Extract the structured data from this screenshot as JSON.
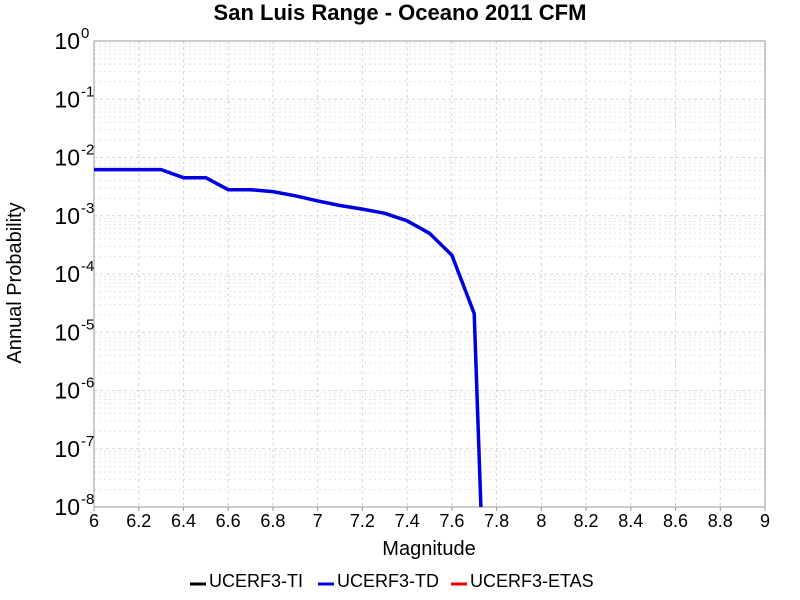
{
  "chart_data": {
    "type": "line",
    "title": "San Luis Range - Oceano 2011 CFM",
    "xlabel": "Magnitude",
    "ylabel": "Annual Probability",
    "xlim": [
      6,
      9
    ],
    "ylim": [
      1e-08,
      1
    ],
    "y_scale": "log",
    "grid": true,
    "legend_position": "bottom",
    "x_ticks": [
      "6",
      "6.2",
      "6.4",
      "6.6",
      "6.8",
      "7",
      "7.2",
      "7.4",
      "7.6",
      "7.8",
      "8",
      "8.2",
      "8.4",
      "8.6",
      "8.8",
      "9"
    ],
    "y_ticks": [
      {
        "base": "10",
        "exp": "0",
        "value": 1
      },
      {
        "base": "10",
        "exp": "-1",
        "value": 0.1
      },
      {
        "base": "10",
        "exp": "-2",
        "value": 0.01
      },
      {
        "base": "10",
        "exp": "-3",
        "value": 0.001
      },
      {
        "base": "10",
        "exp": "-4",
        "value": 0.0001
      },
      {
        "base": "10",
        "exp": "-5",
        "value": 1e-05
      },
      {
        "base": "10",
        "exp": "-6",
        "value": 1e-06
      },
      {
        "base": "10",
        "exp": "-7",
        "value": 1e-07
      },
      {
        "base": "10",
        "exp": "-8",
        "value": 1e-08
      }
    ],
    "series": [
      {
        "name": "UCERF3-TI",
        "color": "#000000",
        "x": [],
        "y": []
      },
      {
        "name": "UCERF3-TD",
        "color": "#0000dd",
        "x": [
          6.0,
          6.1,
          6.2,
          6.3,
          6.4,
          6.5,
          6.6,
          6.7,
          6.8,
          6.9,
          7.0,
          7.1,
          7.2,
          7.3,
          7.4,
          7.5,
          7.6,
          7.7,
          7.73
        ],
        "y": [
          0.0062,
          0.0062,
          0.0062,
          0.0062,
          0.0045,
          0.0045,
          0.0028,
          0.0028,
          0.0026,
          0.0022,
          0.0018,
          0.0015,
          0.0013,
          0.0011,
          0.00082,
          0.0005,
          0.00021,
          2.1e-05,
          1e-08
        ]
      },
      {
        "name": "UCERF3-ETAS",
        "color": "#ff0000",
        "x": [],
        "y": []
      }
    ]
  }
}
